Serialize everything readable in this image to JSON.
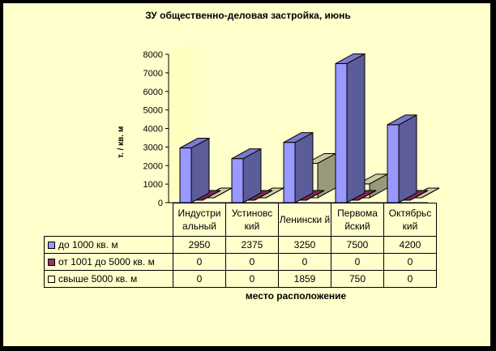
{
  "chart_data": {
    "type": "bar",
    "title": "ЗУ общественно-деловая застройка, июнь",
    "xlabel": "место расположение",
    "ylabel": "т. / кв. м",
    "ylim": [
      0,
      8000
    ],
    "yticks": [
      "0",
      "1000",
      "2000",
      "3000",
      "4000",
      "5000",
      "6000",
      "7000",
      "8000"
    ],
    "categories": [
      "Индустри альный",
      "Устиновс кий",
      "Ленински й",
      "Первома йский",
      "Октябрьс кий"
    ],
    "series": [
      {
        "name": "до 1000 кв. м",
        "values": [
          2950,
          2375,
          3250,
          7500,
          4200
        ],
        "color": "#9999ff"
      },
      {
        "name": "от 1001 до 5000 кв. м",
        "values": [
          0,
          0,
          0,
          0,
          0
        ],
        "color": "#993366"
      },
      {
        "name": "свыше 5000 кв. м",
        "values": [
          0,
          0,
          1859,
          750,
          0
        ],
        "color": "#ffffcc"
      }
    ],
    "table_rows": [
      [
        "2950",
        "2375",
        "3250",
        "7500",
        "4200"
      ],
      [
        "0",
        "0",
        "0",
        "0",
        "0"
      ],
      [
        "0",
        "0",
        "1859",
        "750",
        "0"
      ]
    ]
  }
}
